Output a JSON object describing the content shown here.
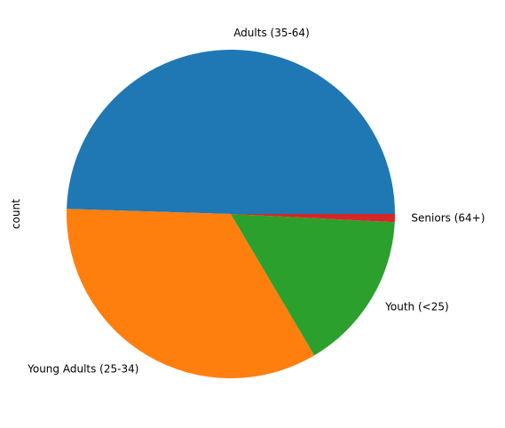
{
  "chart_data": {
    "type": "pie",
    "ylabel": "count",
    "slices": [
      {
        "label": "Adults (35-64)",
        "value": 49.5,
        "color": "#1f77b4"
      },
      {
        "label": "Young Adults (25-34)",
        "value": 34.0,
        "color": "#ff7f0e"
      },
      {
        "label": "Youth (<25)",
        "value": 15.7,
        "color": "#2ca02c"
      },
      {
        "label": "Seniors (64+)",
        "value": 0.8,
        "color": "#d62728"
      }
    ]
  }
}
